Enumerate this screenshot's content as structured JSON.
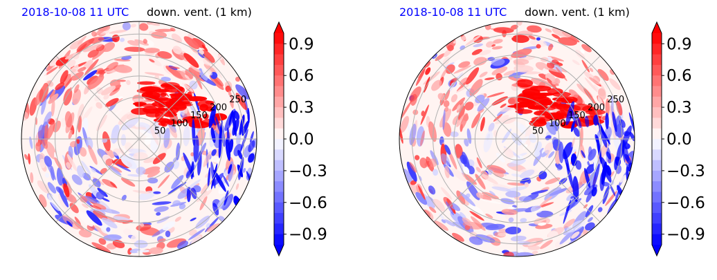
{
  "chart_data": [
    {
      "type": "heatmap",
      "projection": "polar",
      "title_left": "2018-10-08 11 UTC",
      "title_right": "down. vent. (1 km)",
      "radial_ticks": [
        50,
        100,
        150,
        200,
        250
      ],
      "colorbar": {
        "min": -1.0,
        "max": 1.0,
        "ticks": [
          "0.9",
          "0.6",
          "0.3",
          "0.0",
          "−0.3",
          "−0.6",
          "−0.9"
        ],
        "extend": "both",
        "colormap": "bwr",
        "colors": {
          "neg": "#0000ff",
          "mid": "#ffffff",
          "pos": "#ff0000"
        }
      }
    },
    {
      "type": "heatmap",
      "projection": "polar",
      "title_left": "2018-10-08 11 UTC",
      "title_right": "down. vent. (1 km)",
      "radial_ticks": [
        50,
        100,
        150,
        200,
        250
      ],
      "colorbar": {
        "min": -1.0,
        "max": 1.0,
        "ticks": [
          "0.9",
          "0.6",
          "0.3",
          "0.0",
          "−0.3",
          "−0.6",
          "−0.9"
        ],
        "extend": "both",
        "colormap": "bwr",
        "colors": {
          "neg": "#0000ff",
          "mid": "#ffffff",
          "pos": "#ff0000"
        }
      }
    }
  ]
}
